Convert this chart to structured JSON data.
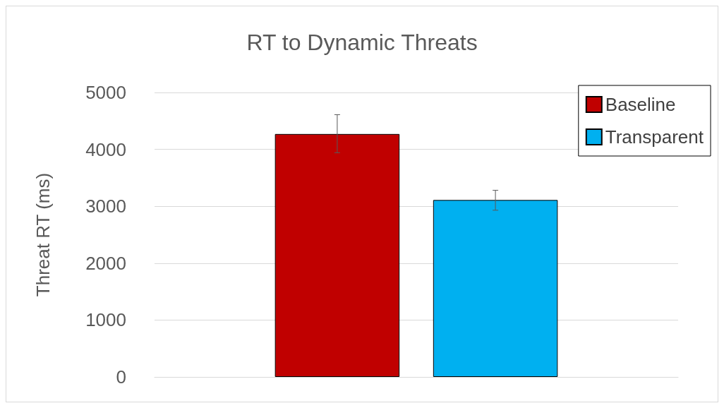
{
  "chart_data": {
    "type": "bar",
    "title": "RT to Dynamic Threats",
    "ylabel": "Threat RT (ms)",
    "categories": [
      null
    ],
    "series": [
      {
        "name": "Baseline",
        "color": "#c00000",
        "values": [
          4270
        ],
        "errors": [
          [
            3940,
            4610
          ]
        ]
      },
      {
        "name": "Transparent",
        "color": "#00b0f0",
        "values": [
          3110
        ],
        "errors": [
          [
            2930,
            3280
          ]
        ]
      }
    ],
    "ylim": [
      0,
      5000
    ],
    "yticks": [
      0,
      1000,
      2000,
      3000,
      4000,
      5000
    ],
    "grid": "y",
    "legend": "top right"
  }
}
